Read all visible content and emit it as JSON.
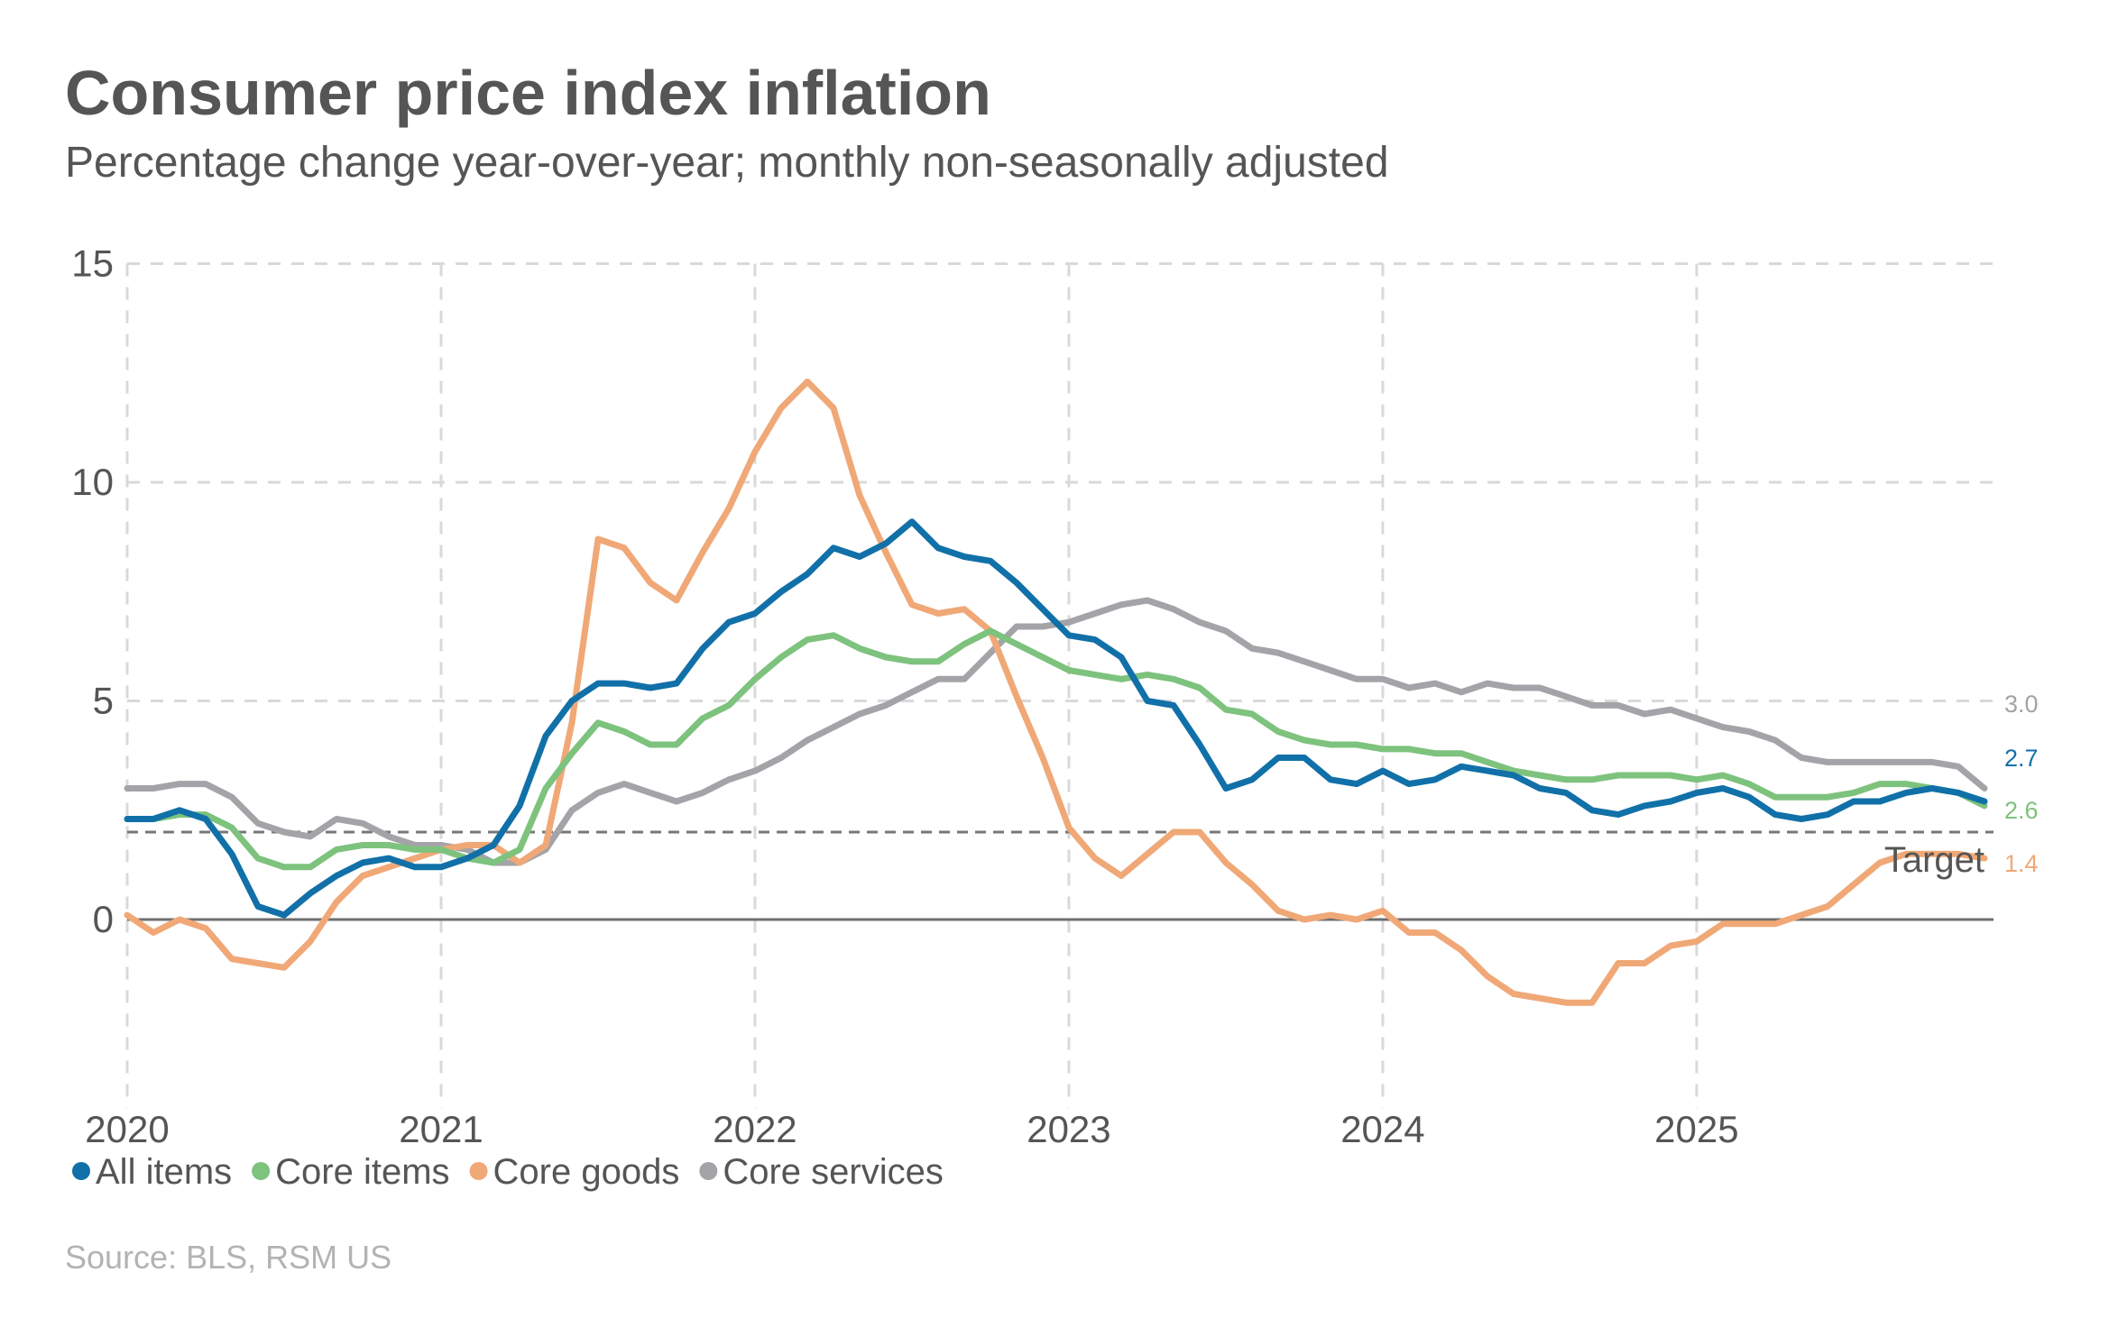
{
  "title": "Consumer price index inflation",
  "subtitle": "Percentage change year-over-year; monthly non-seasonally adjusted",
  "source": "Source: BLS, RSM US",
  "target_label": "Target",
  "chart_data": {
    "type": "line",
    "title": "Consumer price index inflation",
    "subtitle": "Percentage change year-over-year; monthly non-seasonally adjusted",
    "xlabel": "",
    "ylabel": "",
    "x_start": "2020-01",
    "x_end": "2025-11",
    "xlim": [
      2020.0,
      2025.917
    ],
    "ylim": [
      -4,
      15
    ],
    "y_ticks": [
      0,
      5,
      10,
      15
    ],
    "y_tick_labels": [
      "0",
      "5",
      "10",
      "15"
    ],
    "x_ticks": [
      2020,
      2021,
      2022,
      2023,
      2024,
      2025
    ],
    "x_tick_labels": [
      "2020",
      "2021",
      "2022",
      "2023",
      "2024",
      "2025"
    ],
    "grid": true,
    "legend_position": "bottom-left",
    "target_line": 2,
    "zero_line": 0,
    "series": [
      {
        "name": "All items",
        "color": "#1170a8",
        "end_label": "2.7",
        "values": [
          2.3,
          2.3,
          2.5,
          2.3,
          1.5,
          0.3,
          0.1,
          0.6,
          1.0,
          1.3,
          1.4,
          1.2,
          1.2,
          1.4,
          1.7,
          2.6,
          4.2,
          5.0,
          5.4,
          5.4,
          5.3,
          5.4,
          6.2,
          6.8,
          7.0,
          7.5,
          7.9,
          8.5,
          8.3,
          8.6,
          9.1,
          8.5,
          8.3,
          8.2,
          7.7,
          7.1,
          6.5,
          6.4,
          6.0,
          5.0,
          4.9,
          4.0,
          3.0,
          3.2,
          3.7,
          3.7,
          3.2,
          3.1,
          3.4,
          3.1,
          3.2,
          3.5,
          3.4,
          3.3,
          3.0,
          2.9,
          2.5,
          2.4,
          2.6,
          2.7,
          2.9,
          3.0,
          2.8,
          2.4,
          2.3,
          2.4,
          2.7,
          2.7,
          2.9,
          3.0,
          2.9,
          2.7
        ]
      },
      {
        "name": "Core items",
        "color": "#7dc27d",
        "end_label": "2.6",
        "values": [
          2.3,
          2.3,
          2.4,
          2.4,
          2.1,
          1.4,
          1.2,
          1.2,
          1.6,
          1.7,
          1.7,
          1.6,
          1.6,
          1.4,
          1.3,
          1.6,
          3.0,
          3.8,
          4.5,
          4.3,
          4.0,
          4.0,
          4.6,
          4.9,
          5.5,
          6.0,
          6.4,
          6.5,
          6.2,
          6.0,
          5.9,
          5.9,
          6.3,
          6.6,
          6.3,
          6.0,
          5.7,
          5.6,
          5.5,
          5.6,
          5.5,
          5.3,
          4.8,
          4.7,
          4.3,
          4.1,
          4.0,
          4.0,
          3.9,
          3.9,
          3.8,
          3.8,
          3.6,
          3.4,
          3.3,
          3.2,
          3.2,
          3.3,
          3.3,
          3.3,
          3.2,
          3.3,
          3.1,
          2.8,
          2.8,
          2.8,
          2.9,
          3.1,
          3.1,
          3.0,
          2.9,
          2.6
        ]
      },
      {
        "name": "Core goods",
        "color": "#f0a877",
        "end_label": "1.4",
        "values": [
          0.1,
          -0.3,
          0.0,
          -0.2,
          -0.9,
          -1.0,
          -1.1,
          -0.5,
          0.4,
          1.0,
          1.2,
          1.4,
          1.6,
          1.7,
          1.7,
          1.3,
          1.7,
          4.5,
          8.7,
          8.5,
          7.7,
          7.3,
          8.4,
          9.4,
          10.7,
          11.7,
          12.3,
          11.7,
          9.7,
          8.4,
          7.2,
          7.0,
          7.1,
          6.6,
          5.1,
          3.7,
          2.1,
          1.4,
          1.0,
          1.5,
          2.0,
          2.0,
          1.3,
          0.8,
          0.2,
          0.0,
          0.1,
          0.0,
          0.2,
          -0.3,
          -0.3,
          -0.7,
          -1.3,
          -1.7,
          -1.8,
          -1.9,
          -1.9,
          -1.0,
          -1.0,
          -0.6,
          -0.5,
          -0.1,
          -0.1,
          -0.1,
          0.1,
          0.3,
          0.8,
          1.3,
          1.5,
          1.5,
          1.5,
          1.4
        ]
      },
      {
        "name": "Core services",
        "color": "#a3a3a8",
        "end_label": "3.0",
        "values": [
          3.0,
          3.0,
          3.1,
          3.1,
          2.8,
          2.2,
          2.0,
          1.9,
          2.3,
          2.2,
          1.9,
          1.7,
          1.7,
          1.6,
          1.3,
          1.3,
          1.6,
          2.5,
          2.9,
          3.1,
          2.9,
          2.7,
          2.9,
          3.2,
          3.4,
          3.7,
          4.1,
          4.4,
          4.7,
          4.9,
          5.2,
          5.5,
          5.5,
          6.1,
          6.7,
          6.7,
          6.8,
          7.0,
          7.2,
          7.3,
          7.1,
          6.8,
          6.6,
          6.2,
          6.1,
          5.9,
          5.7,
          5.5,
          5.5,
          5.3,
          5.4,
          5.2,
          5.4,
          5.3,
          5.3,
          5.1,
          4.9,
          4.9,
          4.7,
          4.8,
          4.6,
          4.4,
          4.3,
          4.1,
          3.7,
          3.6,
          3.6,
          3.6,
          3.6,
          3.6,
          3.5,
          3.0
        ]
      }
    ]
  }
}
